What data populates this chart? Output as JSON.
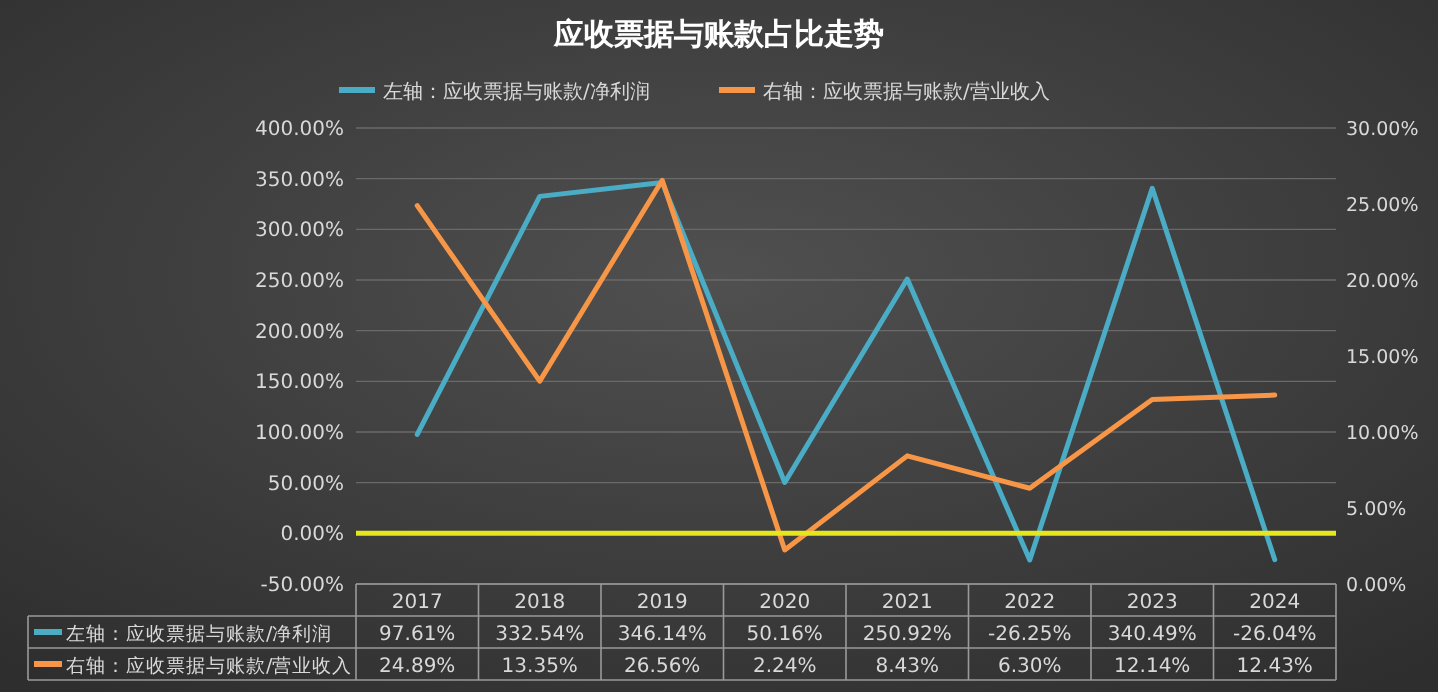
{
  "chart_data": {
    "type": "line",
    "title": "应收票据与账款占比走势",
    "categories": [
      "2017",
      "2018",
      "2019",
      "2020",
      "2021",
      "2022",
      "2023",
      "2024"
    ],
    "series": [
      {
        "name": "左轴：应收票据与账款/净利润",
        "color": "#4bacc6",
        "values": [
          97.61,
          332.54,
          346.14,
          50.16,
          250.92,
          -26.25,
          340.49,
          -26.04
        ],
        "value_labels": [
          "97.61%",
          "332.54%",
          "346.14%",
          "50.16%",
          "250.92%",
          "-26.25%",
          "340.49%",
          "-26.04%"
        ]
      },
      {
        "name": "右轴：应收票据与账款/营业收入",
        "color": "#f79646",
        "axis": "y2",
        "values": [
          24.89,
          13.35,
          26.56,
          2.24,
          8.43,
          6.3,
          12.14,
          12.43
        ],
        "value_labels": [
          "24.89%",
          "13.35%",
          "26.56%",
          "2.24%",
          "8.43%",
          "6.30%",
          "12.14%",
          "12.43%"
        ]
      }
    ],
    "ylim": [
      -50,
      400
    ],
    "yticks": [
      {
        "value": -50,
        "label": "-50.00%"
      },
      {
        "value": 0,
        "label": "0.00%"
      },
      {
        "value": 50,
        "label": "50.00%"
      },
      {
        "value": 100,
        "label": "100.00%"
      },
      {
        "value": 150,
        "label": "150.00%"
      },
      {
        "value": 200,
        "label": "200.00%"
      },
      {
        "value": 250,
        "label": "250.00%"
      },
      {
        "value": 300,
        "label": "300.00%"
      },
      {
        "value": 350,
        "label": "350.00%"
      },
      {
        "value": 400,
        "label": "400.00%"
      }
    ],
    "y2lim": [
      0,
      30
    ],
    "y2ticks": [
      {
        "value": 0,
        "label": "0.00%"
      },
      {
        "value": 5,
        "label": "5.00%"
      },
      {
        "value": 10,
        "label": "10.00%"
      },
      {
        "value": 15,
        "label": "15.00%"
      },
      {
        "value": 20,
        "label": "20.00%"
      },
      {
        "value": 25,
        "label": "25.00%"
      },
      {
        "value": 30,
        "label": "30.00%"
      }
    ],
    "ref_lines": [
      {
        "axis": "y",
        "value": 0,
        "color": "#e6e61e"
      }
    ],
    "grid": "y",
    "legend": "top",
    "marker": "none",
    "line_style": "solid"
  }
}
